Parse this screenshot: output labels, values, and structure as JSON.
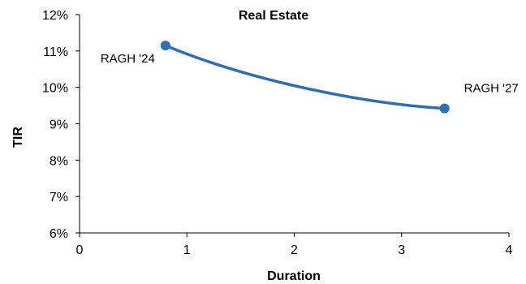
{
  "chart_data": {
    "type": "line",
    "title": "Real Estate",
    "xlabel": "Duration",
    "ylabel": "TIR",
    "xlim": [
      0,
      4
    ],
    "ylim": [
      6,
      12
    ],
    "x_ticks": [
      0,
      1,
      2,
      3,
      4
    ],
    "y_ticks": [
      6,
      7,
      8,
      9,
      10,
      11,
      12
    ],
    "y_unit": "%",
    "grid": false,
    "series": [
      {
        "color": "#2e6eb5",
        "smooth": true,
        "points": [
          {
            "x": 0.8,
            "y": 11.15,
            "label": "RAGH '24"
          },
          {
            "x": 3.4,
            "y": 9.42,
            "label": "RAGH '27"
          }
        ]
      }
    ]
  }
}
